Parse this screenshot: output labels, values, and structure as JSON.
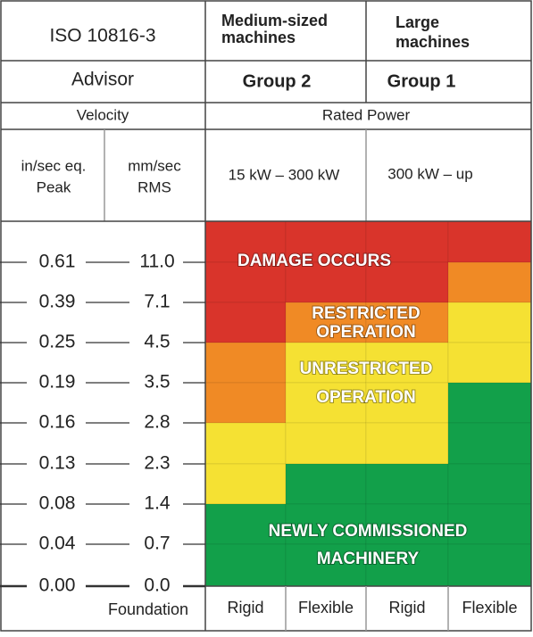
{
  "header": {
    "title": "ISO 10816-3",
    "subtitle": "Advisor",
    "medium": [
      "Medium-sized",
      "machines"
    ],
    "large": [
      "Large",
      "machines"
    ],
    "group_medium": "Group  2",
    "group_large": "Group  1",
    "velocity": "Velocity",
    "rated_power": "Rated Power",
    "unit_peak": [
      "in/sec eq.",
      "Peak"
    ],
    "unit_rms": [
      "mm/sec",
      "RMS"
    ],
    "power_medium": "15 kW – 300 kW",
    "power_large": "300 kW – up"
  },
  "scale": {
    "peak": [
      "0.61",
      "0.39",
      "0.25",
      "0.19",
      "0.16",
      "0.13",
      "0.08",
      "0.04",
      "0.00"
    ],
    "rms": [
      "11.0",
      "7.1",
      "4.5",
      "3.5",
      "2.8",
      "2.3",
      "1.4",
      "0.7",
      "0.0"
    ]
  },
  "zones": {
    "damage": [
      "DAMAGE OCCURS"
    ],
    "restricted": [
      "RESTRICTED",
      "OPERATION"
    ],
    "unrestricted": [
      "UNRESTRICTED",
      "OPERATION"
    ],
    "new": [
      "NEWLY COMMISSIONED",
      "MACHINERY"
    ]
  },
  "footer": {
    "foundation": "Foundation",
    "columns": [
      "Rigid",
      "Flexible",
      "Rigid",
      "Flexible"
    ]
  }
}
